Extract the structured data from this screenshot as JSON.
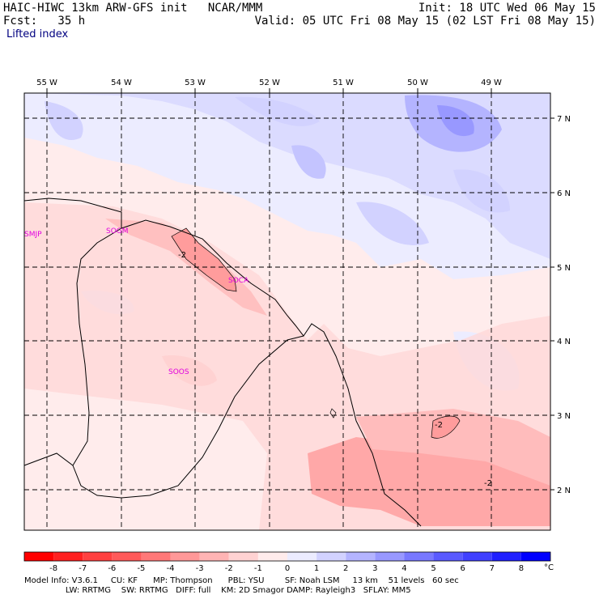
{
  "header": {
    "line1_left": "HAIC-HIWC 13km ARW-GFS init   NCAR/MMM",
    "line2_left": "Fcst:   35 h",
    "line1_right": "Init: 18 UTC Wed 06 May 15",
    "line2_right": "Valid: 05 UTC Fri 08 May 15 (02 LST Fri 08 May 15)",
    "field_name": "Lifted index"
  },
  "map": {
    "lon_labels": [
      "55 W",
      "54 W",
      "53 W",
      "52 W",
      "51 W",
      "50 W",
      "49 W"
    ],
    "lat_labels": [
      "7 N",
      "6 N",
      "5 N",
      "4 N",
      "3 N",
      "2 N"
    ],
    "stations": [
      "SMJP",
      "SOGM",
      "SOCA",
      "SOOS"
    ],
    "contour_labels": [
      "-2",
      "-2",
      "-2"
    ]
  },
  "colorbar": {
    "ticks": [
      "-8",
      "-7",
      "-6",
      "-5",
      "-4",
      "-3",
      "-2",
      "-1",
      "0",
      "1",
      "2",
      "3",
      "4",
      "5",
      "6",
      "7",
      "8"
    ],
    "unit": "°C",
    "colors": [
      "#ff0000",
      "#ff2020",
      "#ff4040",
      "#ff5a5a",
      "#ff7878",
      "#ff9898",
      "#ffb4b4",
      "#ffd2d2",
      "#ffecec",
      "#ececff",
      "#d2d2ff",
      "#b4b4ff",
      "#9898ff",
      "#7878ff",
      "#5a5aff",
      "#4040ff",
      "#2020ff",
      "#0000ff"
    ]
  },
  "footer": {
    "line1": "Model Info: V3.6.1     CU: KF      MP: Thompson      PBL: YSU        SF: Noah LSM     13 km    51 levels   60 sec",
    "line2": "                LW: RRTMG    SW: RRTMG   DIFF: full    KM: 2D Smagor DAMP: Rayleigh3   SFLAY: MM5"
  }
}
